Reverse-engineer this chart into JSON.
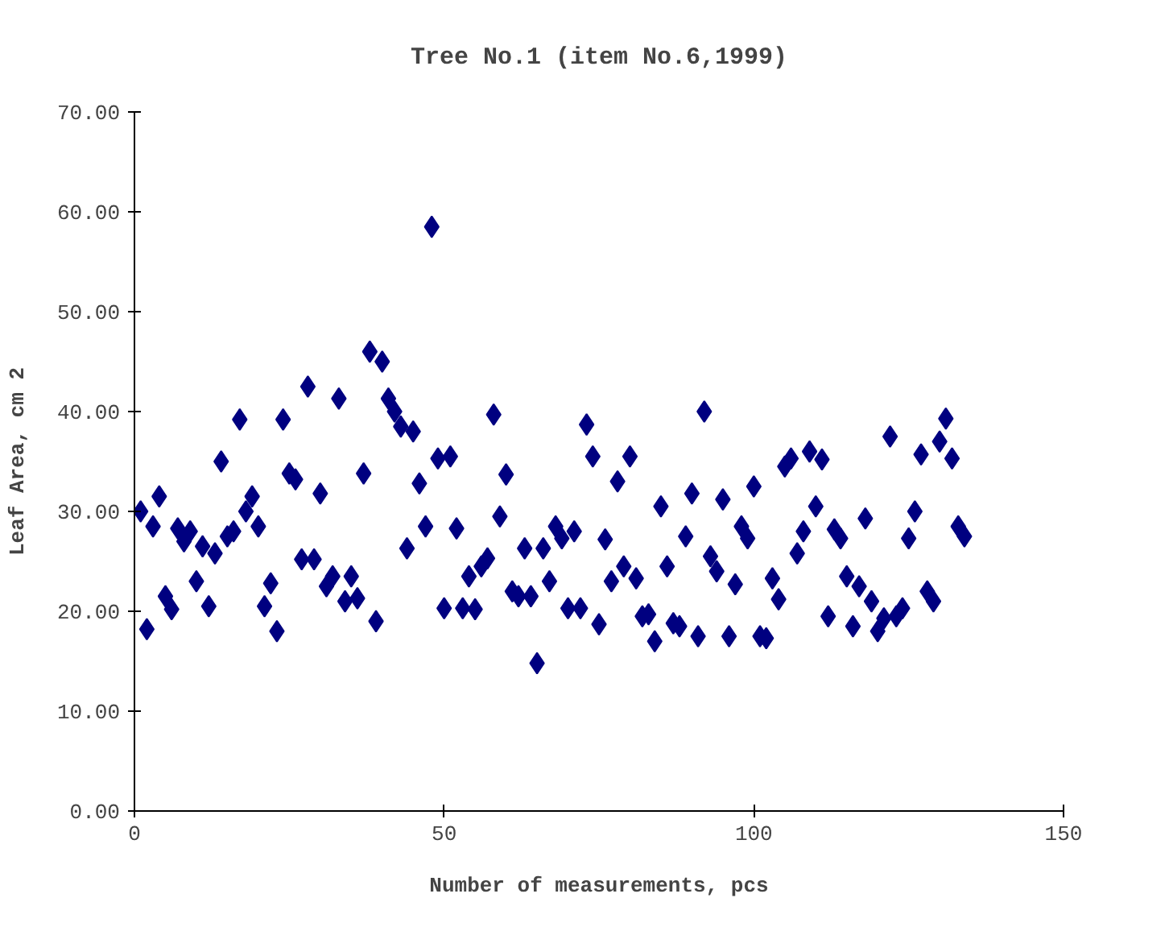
{
  "chart_data": {
    "type": "scatter",
    "title": "Tree No.1 (item No.6,1999)",
    "xlabel": "Number of measurements, pcs",
    "ylabel": "Leaf Area, cm 2",
    "x": [
      1,
      2,
      3,
      4,
      5,
      6,
      7,
      8,
      9,
      10,
      11,
      12,
      13,
      14,
      15,
      16,
      17,
      18,
      19,
      20,
      21,
      22,
      23,
      24,
      25,
      26,
      27,
      28,
      29,
      30,
      31,
      32,
      33,
      34,
      35,
      36,
      37,
      38,
      39,
      40,
      41,
      42,
      43,
      44,
      45,
      46,
      47,
      48,
      49,
      50,
      51,
      52,
      53,
      54,
      55,
      56,
      57,
      58,
      59,
      60,
      61,
      62,
      63,
      64,
      65,
      66,
      67,
      68,
      69,
      70,
      71,
      72,
      73,
      74,
      75,
      76,
      77,
      78,
      79,
      80,
      81,
      82,
      83,
      84,
      85,
      86,
      87,
      88,
      89,
      90,
      91,
      92,
      93,
      94,
      95,
      96,
      97,
      98,
      99,
      100,
      101,
      102,
      103,
      104,
      105,
      106,
      107,
      108,
      109,
      110,
      111,
      112,
      113,
      114,
      115,
      116,
      117,
      118,
      119,
      120,
      121,
      122,
      123,
      124,
      125,
      126,
      127,
      128,
      129,
      130,
      131,
      132,
      133,
      134
    ],
    "series": [
      {
        "color": "#000080",
        "values": [
          30,
          18.2,
          28.5,
          31.5,
          21.5,
          20.2,
          28.3,
          27,
          28,
          23,
          26.5,
          20.5,
          25.8,
          35,
          27.5,
          28,
          39.2,
          30,
          31.5,
          28.5,
          20.5,
          22.8,
          18,
          39.2,
          33.8,
          33.2,
          25.2,
          42.5,
          25.2,
          31.8,
          22.5,
          23.5,
          41.3,
          21,
          23.5,
          21.3,
          33.8,
          46,
          19,
          45,
          41.3,
          40,
          38.5,
          26.3,
          38,
          32.8,
          28.5,
          58.5,
          35.3,
          20.3,
          35.5,
          28.3,
          20.3,
          23.5,
          20.2,
          24.5,
          25.3,
          39.7,
          29.5,
          33.7,
          22,
          21.5,
          26.3,
          21.5,
          14.8,
          26.3,
          23,
          28.5,
          27.3,
          20.3,
          28,
          20.3,
          38.7,
          35.5,
          18.7,
          27.2,
          23,
          33,
          24.5,
          35.5,
          23.3,
          19.5,
          19.7,
          17,
          30.5,
          24.5,
          18.8,
          18.5,
          27.5,
          31.8,
          17.5,
          40,
          25.5,
          24,
          31.2,
          17.5,
          22.7,
          28.5,
          27.3,
          32.5,
          17.5,
          17.3,
          23.3,
          21.2,
          34.5,
          35.3,
          25.8,
          28,
          36,
          30.5,
          35.2,
          19.5,
          28.2,
          27.3,
          23.5,
          18.5,
          22.5,
          29.3,
          21,
          18,
          19.3,
          37.5,
          19.5,
          20.3,
          27.3,
          30,
          35.7,
          22,
          21,
          37,
          39.3,
          35.3,
          28.5,
          27.5
        ]
      }
    ],
    "xlim": [
      0,
      150
    ],
    "xticks": [
      0,
      50,
      100,
      150
    ],
    "ylim": [
      0,
      70
    ],
    "yticks": [
      {
        "value": 0,
        "label": "0.00"
      },
      {
        "value": 10,
        "label": "10.00"
      },
      {
        "value": 20,
        "label": "20.00"
      },
      {
        "value": 30,
        "label": "30.00"
      },
      {
        "value": 40,
        "label": "40.00"
      },
      {
        "value": 50,
        "label": "50.00"
      },
      {
        "value": 60,
        "label": "60.00"
      },
      {
        "value": 70,
        "label": "70.00"
      }
    ],
    "marker": "diamond",
    "grid": false
  }
}
